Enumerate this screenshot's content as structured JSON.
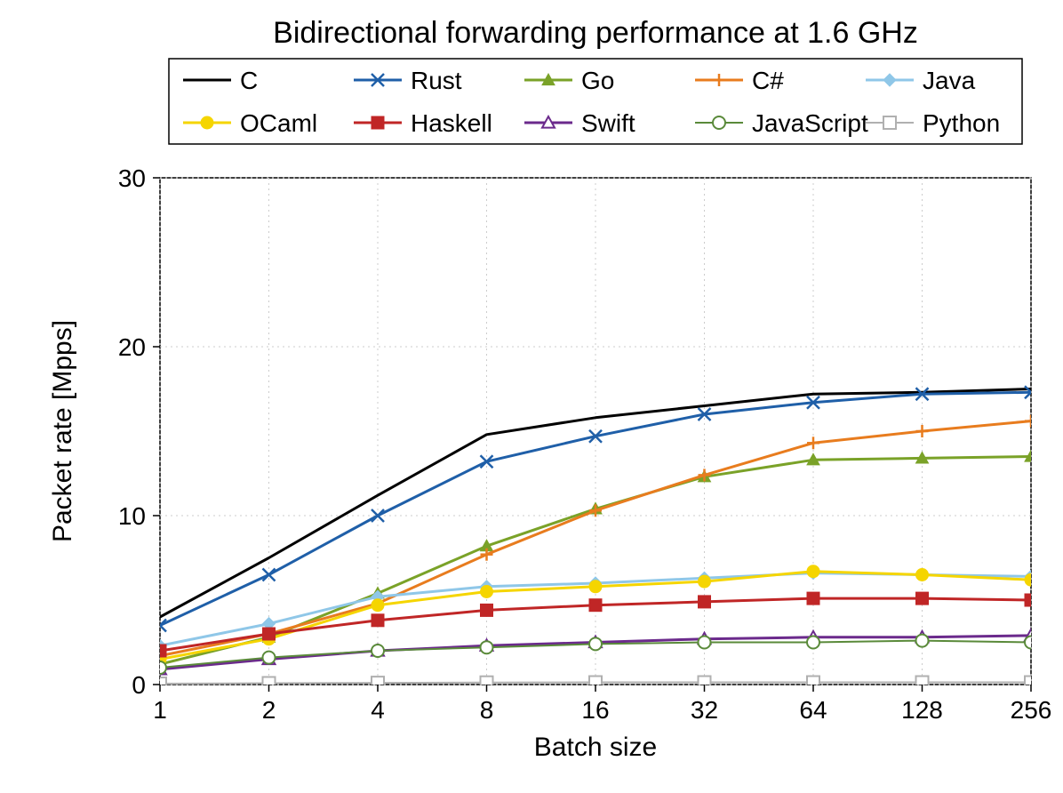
{
  "chart": {
    "type": "line",
    "title": "Bidirectional forwarding performance at 1.6 GHz",
    "title_fontsize": 34,
    "xlabel": "Batch size",
    "ylabel": "Packet rate [Mpps]",
    "axis_label_fontsize": 30,
    "tick_label_fontsize": 28,
    "legend_fontsize": 28,
    "background_color": "#ffffff",
    "plot_background_color": "#ffffff",
    "axis_color": "#000000",
    "grid_color": "#cccccc",
    "grid_dash": "2,4",
    "legend_border_color": "#000000",
    "x": {
      "scale": "log2",
      "ticks": [
        1,
        2,
        4,
        8,
        16,
        32,
        64,
        128,
        256
      ],
      "tick_labels": [
        "1",
        "2",
        "4",
        "8",
        "16",
        "32",
        "64",
        "128",
        "256"
      ],
      "xlim": [
        1,
        256
      ]
    },
    "y": {
      "scale": "linear",
      "ticks": [
        0,
        10,
        20,
        30
      ],
      "tick_labels": [
        "0",
        "10",
        "20",
        "30"
      ],
      "ylim": [
        0,
        30
      ]
    },
    "series": [
      {
        "name": "C",
        "color": "#000000",
        "marker": "none",
        "line_width": 3,
        "values": [
          4.0,
          7.5,
          11.2,
          14.8,
          15.8,
          16.5,
          17.2,
          17.3,
          17.5
        ]
      },
      {
        "name": "Rust",
        "color": "#1f5fa8",
        "marker": "x",
        "line_width": 3,
        "values": [
          3.5,
          6.5,
          10.0,
          13.2,
          14.7,
          16.0,
          16.7,
          17.2,
          17.3
        ]
      },
      {
        "name": "Go",
        "color": "#7aa228",
        "marker": "triangle",
        "line_width": 3,
        "values": [
          1.2,
          2.8,
          5.4,
          8.2,
          10.4,
          12.3,
          13.3,
          13.4,
          13.5
        ]
      },
      {
        "name": "C#",
        "color": "#e87c1e",
        "marker": "plus",
        "line_width": 3,
        "values": [
          1.7,
          3.0,
          4.8,
          7.7,
          10.3,
          12.4,
          14.3,
          15.0,
          15.6
        ]
      },
      {
        "name": "Java",
        "color": "#8fc7e8",
        "marker": "diamond",
        "line_width": 3,
        "values": [
          2.3,
          3.6,
          5.2,
          5.8,
          6.0,
          6.3,
          6.6,
          6.5,
          6.4
        ]
      },
      {
        "name": "OCaml",
        "color": "#f5d500",
        "marker": "circle-f",
        "line_width": 3,
        "values": [
          1.5,
          2.7,
          4.7,
          5.5,
          5.8,
          6.1,
          6.7,
          6.5,
          6.2
        ]
      },
      {
        "name": "Haskell",
        "color": "#c02626",
        "marker": "square-f",
        "line_width": 3,
        "values": [
          2.0,
          3.0,
          3.8,
          4.4,
          4.7,
          4.9,
          5.1,
          5.1,
          5.0
        ]
      },
      {
        "name": "Swift",
        "color": "#6b2a8c",
        "marker": "triangle-o",
        "line_width": 3,
        "values": [
          0.9,
          1.5,
          2.0,
          2.3,
          2.5,
          2.7,
          2.8,
          2.8,
          2.9
        ]
      },
      {
        "name": "JavaScript",
        "color": "#5a8a3a",
        "marker": "circle-o",
        "line_width": 2,
        "values": [
          1.0,
          1.6,
          2.0,
          2.2,
          2.4,
          2.5,
          2.5,
          2.6,
          2.5
        ]
      },
      {
        "name": "Python",
        "color": "#b0b0b0",
        "marker": "square-o",
        "line_width": 2,
        "values": [
          0.05,
          0.08,
          0.1,
          0.12,
          0.13,
          0.13,
          0.13,
          0.13,
          0.13
        ]
      }
    ],
    "legend": {
      "rows": 2,
      "cols": 5,
      "order": [
        [
          "C",
          "Rust",
          "Go",
          "C#",
          "Java"
        ],
        [
          "OCaml",
          "Haskell",
          "Swift",
          "JavaScript",
          "Python"
        ]
      ]
    }
  }
}
